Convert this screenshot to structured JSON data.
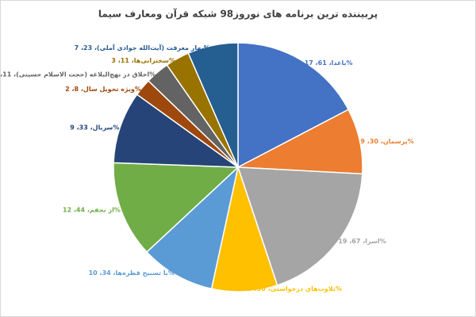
{
  "chart_data": {
    "type": "pie",
    "title": "پربیننده ترین برنامه های نوروز98 شبکه قرآن ومعارف سیما",
    "values": [
      61,
      30,
      67,
      30,
      34,
      44,
      33,
      8,
      11,
      11,
      23
    ],
    "value_labels": [
      "باغدا، 61، 17%",
      "پرسمان، 30، 9%",
      "اسرا، 67، 19%",
      "تلاوت‌های درخواستی، 30، 9%",
      "با تسبیح قطره‌ها، 34، 10%",
      "از نجفم، 44، 12%",
      "سربال، 33، 9%",
      "ویژه تحویل سال، 8، 2%",
      "اخلاق در نهج‌البلاغه (حجت الاسلام حسینی)، 11، 3%",
      "سخنرانی‌ها، 11، 3%",
      "بهار معرفت (آیت‌الله جوادی آملی)، 23، 7%"
    ],
    "colors": [
      "#4472c4",
      "#ed7d31",
      "#a5a5a5",
      "#ffc000",
      "#5b9bd5",
      "#70ad47",
      "#264478",
      "#9e480e",
      "#636363",
      "#997300",
      "#255e91"
    ]
  }
}
